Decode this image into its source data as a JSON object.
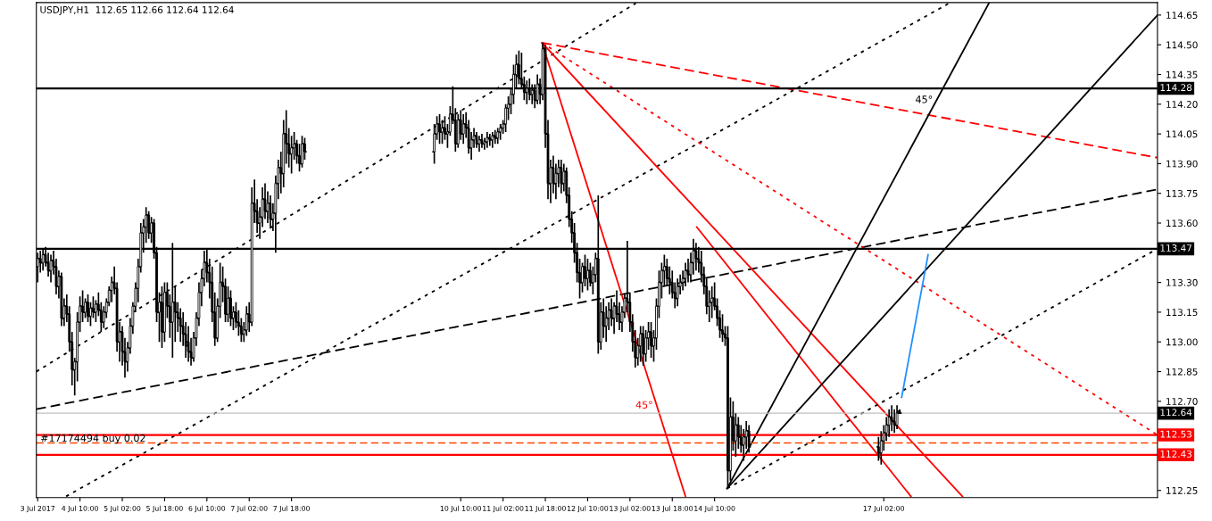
{
  "chart_data": {
    "type": "candlestick",
    "title": "USDJPY,H1  112.65 112.66 112.64 112.64",
    "color": "#000000",
    "x": [
      "2017-07-03T18:00",
      "2017-07-03T19:00",
      "2017-07-03T20:00",
      "2017-07-03T21:00",
      "2017-07-03T22:00",
      "2017-07-03T23:00",
      "2017-07-04T00:00",
      "2017-07-04T01:00",
      "2017-07-04T02:00",
      "2017-07-04T03:00",
      "2017-07-04T04:00",
      "2017-07-04T05:00",
      "2017-07-04T06:00",
      "2017-07-04T07:00",
      "2017-07-04T08:00",
      "2017-07-04T09:00",
      "2017-07-04T10:00",
      "2017-07-04T11:00",
      "2017-07-04T12:00",
      "2017-07-04T13:00",
      "2017-07-04T14:00",
      "2017-07-04T15:00",
      "2017-07-04T16:00",
      "2017-07-04T17:00",
      "2017-07-04T18:00",
      "2017-07-04T19:00",
      "2017-07-04T20:00",
      "2017-07-04T21:00",
      "2017-07-04T22:00",
      "2017-07-04T23:00",
      "2017-07-05T00:00",
      "2017-07-05T01:00",
      "2017-07-05T02:00",
      "2017-07-05T03:00",
      "2017-07-05T04:00",
      "2017-07-05T05:00",
      "2017-07-05T06:00",
      "2017-07-05T07:00",
      "2017-07-05T08:00",
      "2017-07-05T09:00",
      "2017-07-05T10:00",
      "2017-07-05T11:00",
      "2017-07-05T12:00",
      "2017-07-05T13:00",
      "2017-07-05T14:00",
      "2017-07-05T15:00",
      "2017-07-05T16:00",
      "2017-07-05T17:00",
      "2017-07-05T18:00",
      "2017-07-05T19:00",
      "2017-07-05T20:00",
      "2017-07-05T21:00",
      "2017-07-05T22:00",
      "2017-07-05T23:00",
      "2017-07-06T00:00",
      "2017-07-06T01:00",
      "2017-07-06T02:00",
      "2017-07-06T03:00",
      "2017-07-06T04:00",
      "2017-07-06T05:00",
      "2017-07-06T06:00",
      "2017-07-06T07:00",
      "2017-07-06T08:00",
      "2017-07-06T09:00",
      "2017-07-06T10:00",
      "2017-07-06T11:00",
      "2017-07-06T12:00",
      "2017-07-06T13:00",
      "2017-07-06T14:00",
      "2017-07-06T15:00",
      "2017-07-06T16:00",
      "2017-07-06T17:00",
      "2017-07-06T18:00",
      "2017-07-06T19:00",
      "2017-07-06T20:00",
      "2017-07-06T21:00",
      "2017-07-06T22:00",
      "2017-07-06T23:00",
      "2017-07-07T00:00",
      "2017-07-07T01:00",
      "2017-07-07T02:00",
      "2017-07-07T03:00",
      "2017-07-07T04:00",
      "2017-07-07T05:00",
      "2017-07-07T06:00",
      "2017-07-07T07:00",
      "2017-07-07T08:00",
      "2017-07-07T09:00",
      "2017-07-07T10:00",
      "2017-07-07T11:00",
      "2017-07-07T12:00",
      "2017-07-07T13:00",
      "2017-07-07T14:00",
      "2017-07-07T15:00",
      "2017-07-07T16:00",
      "2017-07-07T17:00",
      "2017-07-07T18:00",
      "2017-07-07T19:00",
      "2017-07-07T20:00",
      "2017-07-07T21:00",
      "2017-07-07T22:00",
      "2017-07-07T23:00",
      "2017-07-10T00:00",
      "2017-07-10T01:00",
      "2017-07-10T02:00",
      "2017-07-10T03:00",
      "2017-07-10T04:00",
      "2017-07-10T05:00",
      "2017-07-10T06:00",
      "2017-07-10T07:00",
      "2017-07-10T08:00",
      "2017-07-10T09:00",
      "2017-07-10T10:00",
      "2017-07-10T11:00",
      "2017-07-10T12:00",
      "2017-07-10T13:00",
      "2017-07-10T14:00",
      "2017-07-10T15:00",
      "2017-07-10T16:00",
      "2017-07-10T17:00",
      "2017-07-10T18:00",
      "2017-07-10T19:00",
      "2017-07-10T20:00",
      "2017-07-10T21:00",
      "2017-07-10T22:00",
      "2017-07-10T23:00",
      "2017-07-11T00:00",
      "2017-07-11T01:00",
      "2017-07-11T02:00",
      "2017-07-11T03:00",
      "2017-07-11T04:00",
      "2017-07-11T05:00",
      "2017-07-11T06:00",
      "2017-07-11T07:00",
      "2017-07-11T08:00",
      "2017-07-11T09:00",
      "2017-07-11T10:00",
      "2017-07-11T11:00",
      "2017-07-11T12:00",
      "2017-07-11T13:00",
      "2017-07-11T14:00",
      "2017-07-11T15:00",
      "2017-07-11T16:00",
      "2017-07-11T17:00",
      "2017-07-11T18:00",
      "2017-07-11T19:00",
      "2017-07-11T20:00",
      "2017-07-11T21:00",
      "2017-07-11T22:00",
      "2017-07-11T23:00",
      "2017-07-12T00:00",
      "2017-07-12T01:00",
      "2017-07-12T02:00",
      "2017-07-12T03:00",
      "2017-07-12T04:00",
      "2017-07-12T05:00",
      "2017-07-12T06:00",
      "2017-07-12T07:00",
      "2017-07-12T08:00",
      "2017-07-12T09:00",
      "2017-07-12T10:00",
      "2017-07-12T11:00",
      "2017-07-12T12:00",
      "2017-07-12T13:00",
      "2017-07-12T14:00",
      "2017-07-12T15:00",
      "2017-07-12T16:00",
      "2017-07-12T17:00",
      "2017-07-12T18:00",
      "2017-07-12T19:00",
      "2017-07-12T20:00",
      "2017-07-12T21:00",
      "2017-07-12T22:00",
      "2017-07-12T23:00",
      "2017-07-13T00:00",
      "2017-07-13T01:00",
      "2017-07-13T02:00",
      "2017-07-13T03:00",
      "2017-07-13T04:00",
      "2017-07-13T05:00",
      "2017-07-13T06:00",
      "2017-07-13T07:00",
      "2017-07-13T08:00",
      "2017-07-13T09:00",
      "2017-07-13T10:00",
      "2017-07-13T11:00",
      "2017-07-13T12:00",
      "2017-07-13T13:00",
      "2017-07-13T14:00",
      "2017-07-13T15:00",
      "2017-07-13T16:00",
      "2017-07-13T17:00",
      "2017-07-13T18:00",
      "2017-07-13T19:00",
      "2017-07-13T20:00",
      "2017-07-13T21:00",
      "2017-07-13T22:00",
      "2017-07-13T23:00",
      "2017-07-14T00:00",
      "2017-07-14T01:00",
      "2017-07-14T02:00",
      "2017-07-14T03:00",
      "2017-07-14T04:00",
      "2017-07-14T05:00",
      "2017-07-14T06:00",
      "2017-07-14T07:00",
      "2017-07-14T08:00",
      "2017-07-14T09:00",
      "2017-07-14T10:00",
      "2017-07-14T11:00",
      "2017-07-14T12:00",
      "2017-07-14T13:00",
      "2017-07-14T14:00",
      "2017-07-14T15:00",
      "2017-07-14T16:00",
      "2017-07-14T17:00",
      "2017-07-14T18:00",
      "2017-07-14T19:00",
      "2017-07-14T20:00",
      "2017-07-14T21:00",
      "2017-07-14T22:00",
      "2017-07-14T23:00",
      "2017-07-17T00:00",
      "2017-07-17T01:00",
      "2017-07-17T02:00",
      "2017-07-17T03:00",
      "2017-07-17T04:00",
      "2017-07-17T05:00",
      "2017-07-17T06:00",
      "2017-07-17T07:00",
      "2017-07-17T08:00"
    ],
    "ohlc": [
      [
        113.38,
        113.45,
        113.3,
        113.42
      ],
      [
        113.42,
        113.46,
        113.35,
        113.4
      ],
      [
        113.4,
        113.47,
        113.36,
        113.44
      ],
      [
        113.44,
        113.48,
        113.38,
        113.4
      ],
      [
        113.4,
        113.45,
        113.33,
        113.36
      ],
      [
        113.36,
        113.44,
        113.3,
        113.41
      ],
      [
        113.41,
        113.46,
        113.34,
        113.38
      ],
      [
        113.38,
        113.42,
        113.24,
        113.28
      ],
      [
        113.28,
        113.36,
        113.22,
        113.33
      ],
      [
        113.33,
        113.35,
        113.08,
        113.12
      ],
      [
        113.12,
        113.22,
        113.08,
        113.18
      ],
      [
        113.18,
        113.24,
        113.1,
        113.14
      ],
      [
        113.14,
        113.18,
        112.95,
        113.0
      ],
      [
        113.0,
        113.05,
        112.78,
        112.86
      ],
      [
        112.86,
        112.92,
        112.73,
        112.9
      ],
      [
        112.9,
        113.15,
        112.8,
        113.1
      ],
      [
        113.1,
        113.23,
        113.05,
        113.18
      ],
      [
        113.18,
        113.26,
        113.1,
        113.15
      ],
      [
        113.15,
        113.22,
        113.12,
        113.2
      ],
      [
        113.2,
        113.24,
        113.1,
        113.13
      ],
      [
        113.13,
        113.2,
        113.08,
        113.17
      ],
      [
        113.17,
        113.23,
        113.12,
        113.15
      ],
      [
        113.15,
        113.21,
        113.1,
        113.19
      ],
      [
        113.19,
        113.25,
        113.13,
        113.16
      ],
      [
        113.16,
        113.2,
        113.05,
        113.1
      ],
      [
        113.1,
        113.18,
        113.07,
        113.15
      ],
      [
        113.15,
        113.22,
        113.12,
        113.2
      ],
      [
        113.2,
        113.28,
        113.18,
        113.26
      ],
      [
        113.26,
        113.33,
        113.2,
        113.3
      ],
      [
        113.3,
        113.38,
        113.24,
        113.27
      ],
      [
        113.27,
        113.3,
        112.95,
        113.0
      ],
      [
        113.0,
        113.1,
        112.9,
        113.05
      ],
      [
        113.05,
        113.08,
        112.88,
        112.95
      ],
      [
        112.95,
        113.02,
        112.82,
        112.9
      ],
      [
        112.9,
        113.0,
        112.85,
        112.97
      ],
      [
        112.97,
        113.12,
        112.94,
        113.08
      ],
      [
        113.08,
        113.2,
        113.04,
        113.18
      ],
      [
        113.18,
        113.3,
        113.15,
        113.27
      ],
      [
        113.27,
        113.42,
        113.2,
        113.38
      ],
      [
        113.38,
        113.6,
        113.35,
        113.55
      ],
      [
        113.55,
        113.62,
        113.45,
        113.58
      ],
      [
        113.58,
        113.68,
        113.5,
        113.64
      ],
      [
        113.64,
        113.66,
        113.52,
        113.55
      ],
      [
        113.55,
        113.63,
        113.5,
        113.6
      ],
      [
        113.6,
        113.62,
        113.42,
        113.45
      ],
      [
        113.45,
        113.48,
        113.1,
        113.15
      ],
      [
        113.15,
        113.25,
        113.0,
        113.2
      ],
      [
        113.2,
        113.28,
        112.97,
        113.05
      ],
      [
        113.05,
        113.3,
        113.0,
        113.25
      ],
      [
        113.25,
        113.3,
        113.12,
        113.18
      ],
      [
        113.18,
        113.24,
        113.02,
        113.1
      ],
      [
        113.1,
        113.5,
        112.92,
        113.2
      ],
      [
        113.2,
        113.28,
        113.0,
        113.15
      ],
      [
        113.15,
        113.2,
        113.05,
        113.12
      ],
      [
        113.12,
        113.17,
        113.0,
        113.08
      ],
      [
        113.08,
        113.15,
        112.98,
        113.04
      ],
      [
        113.04,
        113.1,
        112.92,
        112.98
      ],
      [
        113.0,
        113.08,
        112.9,
        112.95
      ],
      [
        112.95,
        113.02,
        112.88,
        112.92
      ],
      [
        112.92,
        113.05,
        112.9,
        113.02
      ],
      [
        113.02,
        113.15,
        112.98,
        113.12
      ],
      [
        113.12,
        113.3,
        113.08,
        113.25
      ],
      [
        113.25,
        113.36,
        113.18,
        113.32
      ],
      [
        113.32,
        113.46,
        113.28,
        113.4
      ],
      [
        113.4,
        113.47,
        113.3,
        113.35
      ],
      [
        113.35,
        113.42,
        113.22,
        113.3
      ],
      [
        113.3,
        113.38,
        113.1,
        113.15
      ],
      [
        113.15,
        113.25,
        112.98,
        113.02
      ],
      [
        113.02,
        113.22,
        113.0,
        113.18
      ],
      [
        113.18,
        113.4,
        113.12,
        113.3
      ],
      [
        113.3,
        113.38,
        113.2,
        113.28
      ],
      [
        113.28,
        113.32,
        113.1,
        113.14
      ],
      [
        113.14,
        113.28,
        113.1,
        113.22
      ],
      [
        113.22,
        113.26,
        113.08,
        113.12
      ],
      [
        113.12,
        113.18,
        113.06,
        113.15
      ],
      [
        113.15,
        113.2,
        113.07,
        113.1
      ],
      [
        113.1,
        113.16,
        113.03,
        113.08
      ],
      [
        113.08,
        113.12,
        113.0,
        113.04
      ],
      [
        113.04,
        113.1,
        113.0,
        113.06
      ],
      [
        113.06,
        113.18,
        113.03,
        113.14
      ],
      [
        113.14,
        113.2,
        113.05,
        113.1
      ],
      [
        113.1,
        113.78,
        113.08,
        113.7
      ],
      [
        113.7,
        113.82,
        113.6,
        113.66
      ],
      [
        113.66,
        113.72,
        113.55,
        113.6
      ],
      [
        113.6,
        113.68,
        113.52,
        113.63
      ],
      [
        113.63,
        113.78,
        113.58,
        113.72
      ],
      [
        113.72,
        113.8,
        113.62,
        113.66
      ],
      [
        113.66,
        113.76,
        113.6,
        113.7
      ],
      [
        113.7,
        113.74,
        113.58,
        113.62
      ],
      [
        113.62,
        113.7,
        113.56,
        113.65
      ],
      [
        113.65,
        113.84,
        113.45,
        113.8
      ],
      [
        113.8,
        113.92,
        113.72,
        113.88
      ],
      [
        113.88,
        113.96,
        113.75,
        113.85
      ],
      [
        113.85,
        114.12,
        113.78,
        114.05
      ],
      [
        114.05,
        114.17,
        113.9,
        114.0
      ],
      [
        114.0,
        114.08,
        113.88,
        113.95
      ],
      [
        113.95,
        114.04,
        113.85,
        113.98
      ],
      [
        113.98,
        114.06,
        113.92,
        114.0
      ],
      [
        114.0,
        114.02,
        113.9,
        113.94
      ],
      [
        113.94,
        114.0,
        113.86,
        113.9
      ],
      [
        113.9,
        114.04,
        113.88,
        114.0
      ],
      [
        114.0,
        114.03,
        113.92,
        113.96
      ],
      [
        113.96,
        114.1,
        113.9,
        114.05
      ],
      [
        114.05,
        114.14,
        114.02,
        114.1
      ],
      [
        114.1,
        114.15,
        114.0,
        114.06
      ],
      [
        114.06,
        114.12,
        114.0,
        114.08
      ],
      [
        114.08,
        114.14,
        114.02,
        114.05
      ],
      [
        114.05,
        114.1,
        113.98,
        114.06
      ],
      [
        114.06,
        114.19,
        114.04,
        114.15
      ],
      [
        114.15,
        114.29,
        114.1,
        114.12
      ],
      [
        114.12,
        114.18,
        113.96,
        114.0
      ],
      [
        114.0,
        114.15,
        113.98,
        114.12
      ],
      [
        114.12,
        114.17,
        114.02,
        114.05
      ],
      [
        114.05,
        114.15,
        114.0,
        114.1
      ],
      [
        114.1,
        114.16,
        114.03,
        114.08
      ],
      [
        114.08,
        114.12,
        113.95,
        113.98
      ],
      [
        113.98,
        114.06,
        113.92,
        114.02
      ],
      [
        114.02,
        114.08,
        113.98,
        114.04
      ],
      [
        114.04,
        114.06,
        113.98,
        114.0
      ],
      [
        114.0,
        114.04,
        113.96,
        114.02
      ],
      [
        114.02,
        114.05,
        113.98,
        114.0
      ],
      [
        114.0,
        114.03,
        113.97,
        114.01
      ],
      [
        114.01,
        114.06,
        113.98,
        114.03
      ],
      [
        114.03,
        114.05,
        113.99,
        114.02
      ],
      [
        114.02,
        114.06,
        113.98,
        114.04
      ],
      [
        114.04,
        114.07,
        114.0,
        114.03
      ],
      [
        114.03,
        114.08,
        114.0,
        114.06
      ],
      [
        114.06,
        114.1,
        114.02,
        114.08
      ],
      [
        114.08,
        114.12,
        114.05,
        114.1
      ],
      [
        114.1,
        114.2,
        114.06,
        114.18
      ],
      [
        114.18,
        114.24,
        114.12,
        114.2
      ],
      [
        114.2,
        114.28,
        114.15,
        114.25
      ],
      [
        114.25,
        114.4,
        114.2,
        114.35
      ],
      [
        114.35,
        114.45,
        114.28,
        114.4
      ],
      [
        114.4,
        114.47,
        114.3,
        114.33
      ],
      [
        114.33,
        114.46,
        114.28,
        114.3
      ],
      [
        114.3,
        114.34,
        114.22,
        114.26
      ],
      [
        114.26,
        114.32,
        114.2,
        114.28
      ],
      [
        114.28,
        114.33,
        114.22,
        114.25
      ],
      [
        114.25,
        114.3,
        114.2,
        114.27
      ],
      [
        114.27,
        114.3,
        114.18,
        114.22
      ],
      [
        114.22,
        114.35,
        114.2,
        114.3
      ],
      [
        114.3,
        114.33,
        114.2,
        114.25
      ],
      [
        114.25,
        114.51,
        114.22,
        114.48
      ],
      [
        114.48,
        114.5,
        113.98,
        114.05
      ],
      [
        114.05,
        114.12,
        113.72,
        113.8
      ],
      [
        113.8,
        113.92,
        113.7,
        113.88
      ],
      [
        113.88,
        113.94,
        113.75,
        113.8
      ],
      [
        113.8,
        113.9,
        113.72,
        113.85
      ],
      [
        113.85,
        113.92,
        113.78,
        113.88
      ],
      [
        113.88,
        113.92,
        113.75,
        113.8
      ],
      [
        113.8,
        113.9,
        113.76,
        113.86
      ],
      [
        113.86,
        113.88,
        113.7,
        113.74
      ],
      [
        113.74,
        113.78,
        113.58,
        113.62
      ],
      [
        113.62,
        113.66,
        113.5,
        113.55
      ],
      [
        113.55,
        113.6,
        113.4,
        113.45
      ],
      [
        113.45,
        113.5,
        113.3,
        113.35
      ],
      [
        113.35,
        113.42,
        113.22,
        113.3
      ],
      [
        113.3,
        113.4,
        113.25,
        113.38
      ],
      [
        113.38,
        113.44,
        113.28,
        113.32
      ],
      [
        113.32,
        113.42,
        113.26,
        113.36
      ],
      [
        113.36,
        113.4,
        113.28,
        113.3
      ],
      [
        113.3,
        113.38,
        113.24,
        113.34
      ],
      [
        113.34,
        113.45,
        113.3,
        113.42
      ],
      [
        113.42,
        113.74,
        112.94,
        113.0
      ],
      [
        113.0,
        113.2,
        112.96,
        113.15
      ],
      [
        113.15,
        113.22,
        113.02,
        113.08
      ],
      [
        113.08,
        113.18,
        113.0,
        113.12
      ],
      [
        113.12,
        113.2,
        113.06,
        113.16
      ],
      [
        113.16,
        113.22,
        113.08,
        113.12
      ],
      [
        113.12,
        113.2,
        113.04,
        113.18
      ],
      [
        113.18,
        113.26,
        113.1,
        113.14
      ],
      [
        113.14,
        113.2,
        113.06,
        113.1
      ],
      [
        113.1,
        113.18,
        113.05,
        113.15
      ],
      [
        113.15,
        113.24,
        113.12,
        113.22
      ],
      [
        113.22,
        113.51,
        113.15,
        113.2
      ],
      [
        113.2,
        113.25,
        113.05,
        113.1
      ],
      [
        113.1,
        113.14,
        112.95,
        113.0
      ],
      [
        113.0,
        113.06,
        112.87,
        112.92
      ],
      [
        112.92,
        113.02,
        112.88,
        112.98
      ],
      [
        112.98,
        113.08,
        112.9,
        113.04
      ],
      [
        113.04,
        113.08,
        112.88,
        112.94
      ],
      [
        112.94,
        113.06,
        112.9,
        113.02
      ],
      [
        113.02,
        113.1,
        112.96,
        113.05
      ],
      [
        113.05,
        113.1,
        112.92,
        112.98
      ],
      [
        112.98,
        113.06,
        112.9,
        113.02
      ],
      [
        113.02,
        113.22,
        112.96,
        113.18
      ],
      [
        113.18,
        113.36,
        113.12,
        113.3
      ],
      [
        113.3,
        113.4,
        113.22,
        113.36
      ],
      [
        113.36,
        113.44,
        113.28,
        113.38
      ],
      [
        113.38,
        113.42,
        113.28,
        113.32
      ],
      [
        113.32,
        113.38,
        113.24,
        113.3
      ],
      [
        113.3,
        113.36,
        113.22,
        113.25
      ],
      [
        113.25,
        113.3,
        113.17,
        113.22
      ],
      [
        113.22,
        113.32,
        113.18,
        113.28
      ],
      [
        113.28,
        113.34,
        113.24,
        113.3
      ],
      [
        113.3,
        113.36,
        113.26,
        113.32
      ],
      [
        113.32,
        113.4,
        113.28,
        113.36
      ],
      [
        113.36,
        113.42,
        113.3,
        113.34
      ],
      [
        113.34,
        113.45,
        113.3,
        113.4
      ],
      [
        113.4,
        113.52,
        113.34,
        113.46
      ],
      [
        113.46,
        113.5,
        113.36,
        113.42
      ],
      [
        113.42,
        113.48,
        113.35,
        113.4
      ],
      [
        113.4,
        113.46,
        113.3,
        113.34
      ],
      [
        113.34,
        113.38,
        113.24,
        113.28
      ],
      [
        113.28,
        113.32,
        113.14,
        113.18
      ],
      [
        113.18,
        113.26,
        113.1,
        113.2
      ],
      [
        113.2,
        113.28,
        113.12,
        113.22
      ],
      [
        113.22,
        113.3,
        113.16,
        113.18
      ],
      [
        113.18,
        113.22,
        113.08,
        113.12
      ],
      [
        113.12,
        113.16,
        113.02,
        113.06
      ],
      [
        113.06,
        113.14,
        113.0,
        113.04
      ],
      [
        113.04,
        113.08,
        112.98,
        113.02
      ],
      [
        113.02,
        113.08,
        112.26,
        112.35
      ],
      [
        112.35,
        112.72,
        112.3,
        112.62
      ],
      [
        112.62,
        112.7,
        112.45,
        112.5
      ],
      [
        112.5,
        112.64,
        112.42,
        112.58
      ],
      [
        112.58,
        112.62,
        112.46,
        112.52
      ],
      [
        112.52,
        112.58,
        112.44,
        112.48
      ],
      [
        112.48,
        112.56,
        112.4,
        112.52
      ],
      [
        112.52,
        112.6,
        112.46,
        112.55
      ],
      [
        112.55,
        112.58,
        112.44,
        112.47
      ],
      [
        112.47,
        112.52,
        112.4,
        112.44
      ],
      [
        112.44,
        112.55,
        112.38,
        112.5
      ],
      [
        112.5,
        112.58,
        112.45,
        112.54
      ],
      [
        112.54,
        112.62,
        112.5,
        112.58
      ],
      [
        112.58,
        112.66,
        112.52,
        112.62
      ],
      [
        112.62,
        112.68,
        112.55,
        112.6
      ],
      [
        112.6,
        112.66,
        112.54,
        112.58
      ],
      [
        112.58,
        112.68,
        112.56,
        112.64
      ],
      [
        112.65,
        112.66,
        112.64,
        112.64
      ]
    ],
    "series": [
      {
        "type": "line",
        "color": "#000000",
        "line_style": "dotted",
        "x": [
          "2017-07-03T17:30",
          "2017-07-13T04:15"
        ],
        "values": [
          112.85,
          114.71
        ]
      },
      {
        "type": "line",
        "color": "#000000",
        "line_style": "dotted",
        "x": [
          "2017-07-04T04:45",
          "2017-07-18T02:45"
        ],
        "values": [
          112.22,
          114.71
        ]
      },
      {
        "type": "line",
        "color": "#000000",
        "line_style": "dashed",
        "x": [
          "2017-07-03T17:30",
          "2017-07-21T09:30"
        ],
        "values": [
          112.66,
          113.77
        ]
      },
      {
        "type": "line",
        "name": "45°",
        "color": "#ff0000",
        "line_style": "solid",
        "x": [
          "2017-07-11T16:45",
          "2017-07-13T23:00"
        ],
        "values": [
          114.51,
          112.22
        ]
      },
      {
        "type": "line",
        "color": "#ff0000",
        "line_style": "solid",
        "x": [
          "2017-07-11T16:45",
          "2017-07-18T07:45"
        ],
        "values": [
          114.51,
          112.22
        ]
      },
      {
        "type": "line",
        "color": "#ff0000",
        "line_style": "dotted",
        "x": [
          "2017-07-11T16:45",
          "2017-07-21T09:30"
        ],
        "values": [
          114.51,
          112.53
        ]
      },
      {
        "type": "line",
        "color": "#ff0000",
        "line_style": "dashed",
        "x": [
          "2017-07-11T16:45",
          "2017-07-21T09:30"
        ],
        "values": [
          114.51,
          113.93
        ]
      },
      {
        "type": "line",
        "color": "#ff0000",
        "line_style": "solid",
        "x": [
          "2017-07-14T03:15",
          "2017-07-17T12:15"
        ],
        "values": [
          113.58,
          112.22
        ]
      },
      {
        "type": "line",
        "name": "45°",
        "color": "#000000",
        "line_style": "solid",
        "x": [
          "2017-07-14T14:45",
          "2017-07-18T17:45"
        ],
        "values": [
          112.26,
          114.71
        ]
      },
      {
        "type": "line",
        "color": "#000000",
        "line_style": "solid",
        "x": [
          "2017-07-14T14:45",
          "2017-07-21T09:30"
        ],
        "values": [
          112.26,
          114.65
        ]
      },
      {
        "type": "line",
        "color": "#000000",
        "line_style": "dotted",
        "x": [
          "2017-07-14T14:45",
          "2017-07-21T09:30"
        ],
        "values": [
          112.26,
          113.47
        ]
      },
      {
        "type": "line",
        "color": "#1e90ff",
        "line_style": "solid",
        "x": [
          "2017-07-17T08:45",
          "2017-07-17T18:45"
        ],
        "values": [
          112.72,
          113.44
        ]
      }
    ],
    "ref_lines": [
      {
        "axis": "y",
        "value": 114.28,
        "label": "114.28",
        "color": "#000000"
      },
      {
        "axis": "y",
        "value": 113.47,
        "label": "113.47",
        "color": "#000000"
      },
      {
        "axis": "y",
        "value": 112.64,
        "label": "112.64",
        "color": "#c0c0c0"
      },
      {
        "axis": "y",
        "value": 112.53,
        "label": "112.53",
        "color": "#ff0000"
      },
      {
        "axis": "y",
        "value": 112.43,
        "label": "112.43",
        "color": "#ff0000"
      },
      {
        "axis": "y",
        "value": 112.49,
        "color": "#ff4500",
        "line_style": "dashed"
      }
    ],
    "annotations": [
      {
        "text": "#17174494 buy 0.02",
        "x": "2017-07-03T19:00",
        "y": 112.51
      }
    ],
    "xlim": [
      "2017-07-03T17:30",
      "2017-07-21T09:30"
    ],
    "xticks": [
      {
        "value": "2017-07-03T18:00",
        "label": "3 Jul 2017"
      },
      {
        "value": "2017-07-04T10:00",
        "label": "4 Jul 10:00"
      },
      {
        "value": "2017-07-05T02:00",
        "label": "5 Jul 02:00"
      },
      {
        "value": "2017-07-05T18:00",
        "label": "5 Jul 18:00"
      },
      {
        "value": "2017-07-06T10:00",
        "label": "6 Jul 10:00"
      },
      {
        "value": "2017-07-07T02:00",
        "label": "7 Jul 02:00"
      },
      {
        "value": "2017-07-07T18:00",
        "label": "7 Jul 18:00"
      },
      {
        "value": "2017-07-10T10:00",
        "label": "10 Jul 10:00"
      },
      {
        "value": "2017-07-11T02:00",
        "label": "11 Jul 02:00"
      },
      {
        "value": "2017-07-11T18:00",
        "label": "11 Jul 18:00"
      },
      {
        "value": "2017-07-12T10:00",
        "label": "12 Jul 10:00"
      },
      {
        "value": "2017-07-13T02:00",
        "label": "13 Jul 02:00"
      },
      {
        "value": "2017-07-13T18:00",
        "label": "13 Jul 18:00"
      },
      {
        "value": "2017-07-14T10:00",
        "label": "14 Jul 10:00"
      },
      {
        "value": "2017-07-17T02:00",
        "label": "17 Jul 02:00"
      }
    ],
    "ylim": [
      112.214,
      114.713
    ],
    "yticks": [
      {
        "value": 112.25,
        "label": "112.25"
      },
      {
        "value": 112.4,
        "label": null
      },
      {
        "value": 112.55,
        "label": null
      },
      {
        "value": 112.7,
        "label": "112.70"
      },
      {
        "value": 112.85,
        "label": "112.85"
      },
      {
        "value": 113.0,
        "label": "113.00"
      },
      {
        "value": 113.15,
        "label": "113.15"
      },
      {
        "value": 113.3,
        "label": "113.30"
      },
      {
        "value": 113.45,
        "label": null
      },
      {
        "value": 113.6,
        "label": "113.60"
      },
      {
        "value": 113.75,
        "label": "113.75"
      },
      {
        "value": 113.9,
        "label": "113.90"
      },
      {
        "value": 114.05,
        "label": "114.05"
      },
      {
        "value": 114.2,
        "label": "114.20"
      },
      {
        "value": 114.35,
        "label": "114.35"
      },
      {
        "value": 114.5,
        "label": "114.50"
      },
      {
        "value": 114.65,
        "label": "114.65"
      }
    ]
  }
}
